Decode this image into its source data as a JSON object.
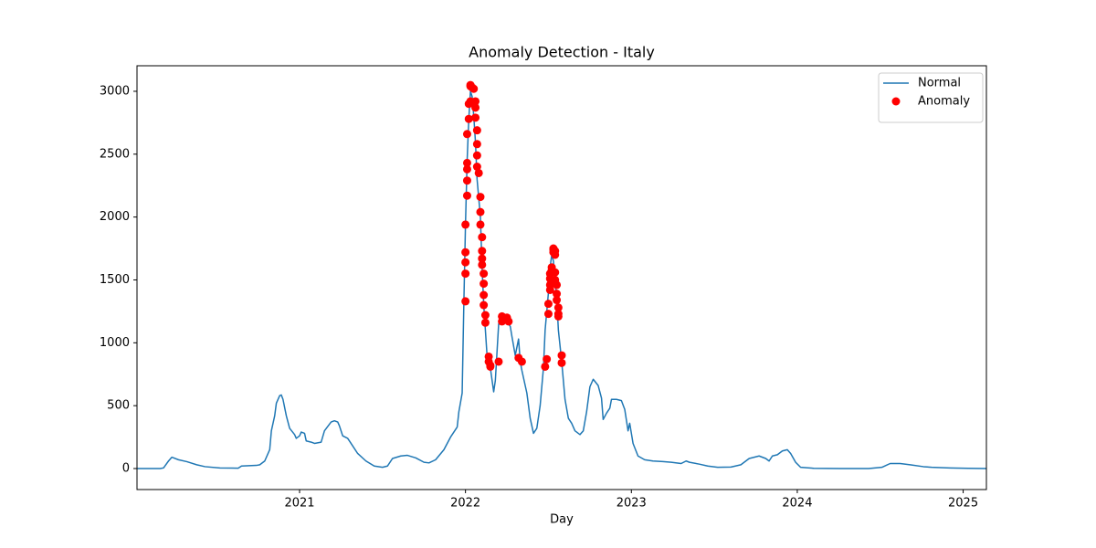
{
  "chart_data": {
    "type": "line",
    "title": "Anomaly Detection - Italy",
    "xlabel": "Day",
    "xlim": [
      2020.02,
      2025.14
    ],
    "xticks": [
      2021,
      2022,
      2023,
      2024,
      2025
    ],
    "ylim": [
      -167,
      3203
    ],
    "yticks": [
      0,
      500,
      1000,
      1500,
      2000,
      2500,
      3000
    ],
    "grid": false,
    "legend": "upper right",
    "series": [
      {
        "name": "Normal",
        "type": "line",
        "color": "#1f77b4",
        "x": [
          2020.02,
          2020.16,
          2020.18,
          2020.21,
          2020.23,
          2020.27,
          2020.32,
          2020.38,
          2020.43,
          2020.52,
          2020.63,
          2020.65,
          2020.74,
          2020.76,
          2020.79,
          2020.82,
          2020.83,
          2020.85,
          2020.86,
          2020.88,
          2020.89,
          2020.9,
          2020.92,
          2020.94,
          2020.97,
          2020.98,
          2021.0,
          2021.01,
          2021.03,
          2021.04,
          2021.07,
          2021.09,
          2021.13,
          2021.15,
          2021.19,
          2021.21,
          2021.23,
          2021.24,
          2021.26,
          2021.29,
          2021.31,
          2021.35,
          2021.4,
          2021.45,
          2021.5,
          2021.53,
          2021.56,
          2021.61,
          2021.65,
          2021.7,
          2021.75,
          2021.78,
          2021.82,
          2021.87,
          2021.91,
          2021.95,
          2021.96,
          2021.98,
          2021.99,
          2022.0,
          2022.01,
          2022.02,
          2022.03,
          2022.04,
          2022.05,
          2022.06,
          2022.07,
          2022.09,
          2022.1,
          2022.11,
          2022.12,
          2022.13,
          2022.15,
          2022.17,
          2022.18,
          2022.2,
          2022.22,
          2022.23,
          2022.25,
          2022.27,
          2022.28,
          2022.3,
          2022.32,
          2022.33,
          2022.34,
          2022.37,
          2022.39,
          2022.41,
          2022.43,
          2022.45,
          2022.47,
          2022.48,
          2022.5,
          2022.51,
          2022.52,
          2022.53,
          2022.54,
          2022.55,
          2022.56,
          2022.58,
          2022.6,
          2022.62,
          2022.64,
          2022.66,
          2022.69,
          2022.71,
          2022.73,
          2022.75,
          2022.77,
          2022.8,
          2022.82,
          2022.83,
          2022.85,
          2022.87,
          2022.88,
          2022.91,
          2022.94,
          2022.96,
          2022.98,
          2022.99,
          2023.01,
          2023.04,
          2023.08,
          2023.13,
          2023.19,
          2023.24,
          2023.3,
          2023.33,
          2023.35,
          2023.41,
          2023.46,
          2023.52,
          2023.6,
          2023.66,
          2023.71,
          2023.77,
          2023.81,
          2023.83,
          2023.85,
          2023.88,
          2023.91,
          2023.94,
          2023.96,
          2023.99,
          2024.02,
          2024.1,
          2024.26,
          2024.43,
          2024.51,
          2024.56,
          2024.62,
          2024.68,
          2024.76,
          2024.81,
          2024.92,
          2025.03,
          2025.14
        ],
        "values": [
          0,
          0,
          5,
          60,
          90,
          70,
          55,
          30,
          15,
          5,
          3,
          20,
          25,
          30,
          60,
          150,
          300,
          420,
          520,
          580,
          585,
          550,
          420,
          320,
          270,
          240,
          260,
          290,
          280,
          220,
          210,
          200,
          210,
          300,
          370,
          380,
          370,
          340,
          260,
          240,
          200,
          120,
          60,
          20,
          10,
          20,
          80,
          100,
          105,
          85,
          50,
          45,
          70,
          150,
          250,
          330,
          450,
          600,
          1300,
          1940,
          2450,
          2780,
          3000,
          2960,
          2800,
          2600,
          2300,
          2000,
          1600,
          1300,
          1100,
          900,
          800,
          610,
          700,
          1150,
          1200,
          1190,
          1170,
          1130,
          1050,
          900,
          1030,
          850,
          780,
          600,
          400,
          280,
          320,
          500,
          800,
          1100,
          1400,
          1600,
          1700,
          1650,
          1500,
          1350,
          1100,
          850,
          550,
          400,
          360,
          300,
          270,
          300,
          450,
          650,
          710,
          660,
          560,
          390,
          440,
          480,
          550,
          550,
          540,
          470,
          300,
          360,
          200,
          100,
          70,
          60,
          55,
          50,
          40,
          60,
          50,
          35,
          20,
          10,
          12,
          30,
          80,
          100,
          80,
          60,
          100,
          110,
          140,
          150,
          120,
          50,
          10,
          2,
          0,
          0,
          10,
          40,
          40,
          30,
          15,
          10,
          5,
          2,
          0
        ]
      },
      {
        "name": "Anomaly",
        "type": "scatter",
        "color": "#ff0000",
        "x": [
          2022.0,
          2022.0,
          2022.0,
          2022.0,
          2022.0,
          2022.01,
          2022.01,
          2022.01,
          2022.01,
          2022.01,
          2022.02,
          2022.02,
          2022.03,
          2022.03,
          2022.03,
          2022.04,
          2022.05,
          2022.06,
          2022.06,
          2022.06,
          2022.07,
          2022.07,
          2022.07,
          2022.07,
          2022.08,
          2022.09,
          2022.09,
          2022.09,
          2022.1,
          2022.1,
          2022.1,
          2022.1,
          2022.11,
          2022.11,
          2022.11,
          2022.11,
          2022.12,
          2022.12,
          2022.14,
          2022.14,
          2022.15,
          2022.15,
          2022.2,
          2022.22,
          2022.22,
          2022.23,
          2022.25,
          2022.26,
          2022.32,
          2022.34,
          2022.48,
          2022.49,
          2022.5,
          2022.5,
          2022.51,
          2022.51,
          2022.51,
          2022.51,
          2022.52,
          2022.52,
          2022.53,
          2022.53,
          2022.53,
          2022.54,
          2022.54,
          2022.54,
          2022.54,
          2022.55,
          2022.55,
          2022.55,
          2022.56,
          2022.56,
          2022.56,
          2022.58,
          2022.58
        ],
        "values": [
          1330,
          1550,
          1640,
          1720,
          1940,
          2170,
          2290,
          2380,
          2430,
          2660,
          2780,
          2900,
          3050,
          3040,
          2920,
          3030,
          3020,
          2920,
          2870,
          2790,
          2690,
          2580,
          2490,
          2400,
          2350,
          2160,
          2040,
          1940,
          1840,
          1730,
          1670,
          1620,
          1550,
          1470,
          1380,
          1300,
          1220,
          1160,
          890,
          850,
          820,
          810,
          850,
          1170,
          1210,
          1200,
          1200,
          1170,
          880,
          850,
          810,
          870,
          1230,
          1310,
          1420,
          1460,
          1510,
          1550,
          1580,
          1600,
          1720,
          1740,
          1750,
          1730,
          1700,
          1560,
          1500,
          1460,
          1390,
          1340,
          1280,
          1230,
          1210,
          900,
          840
        ]
      }
    ]
  }
}
